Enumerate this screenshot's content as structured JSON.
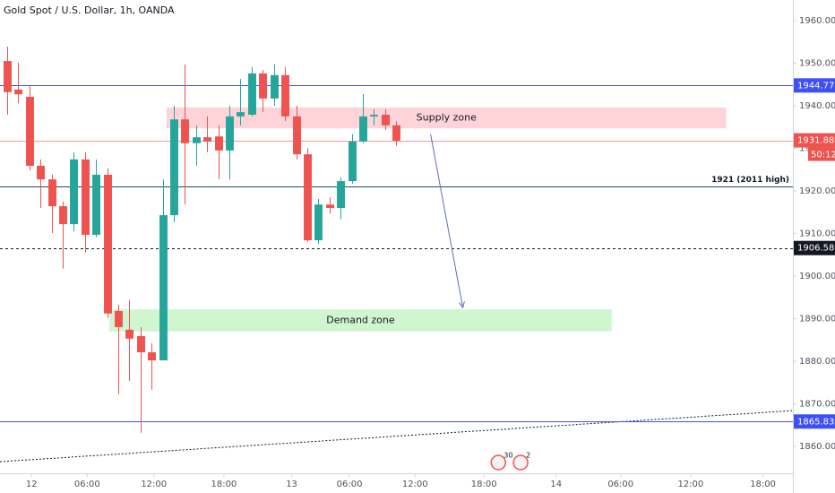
{
  "chart_data": {
    "type": "candlestick",
    "title": "Gold Spot / U.S. Dollar, 1h, OANDA",
    "x": [
      0,
      1,
      2,
      3,
      4,
      5,
      6,
      7,
      8,
      9,
      10,
      11,
      12,
      13,
      14,
      15,
      16,
      17,
      18,
      19,
      20,
      21,
      22,
      23,
      24,
      25,
      26,
      27,
      28,
      29,
      30,
      31,
      32,
      33,
      34,
      35
    ],
    "open": [
      1950.5,
      1943.8,
      1942.1,
      1925.9,
      1922.7,
      1916.4,
      1912.2,
      1927.4,
      1909.7,
      1923.8,
      1891.8,
      1887.4,
      1885.9,
      1882.1,
      1880.2,
      1914.3,
      1936.8,
      1931.2,
      1932.6,
      1932.8,
      1929.5,
      1937.5,
      1937.9,
      1947.6,
      1941.7,
      1947.2,
      1937.5,
      1928.6,
      1908.4,
      1916.8,
      1916.0,
      1922.3,
      1931.6,
      1937.5,
      1937.9,
      1935.4
    ],
    "high": [
      1953.9,
      1950.1,
      1944.8,
      1927.4,
      1923.8,
      1917.5,
      1929.1,
      1929.1,
      1927.4,
      1925.3,
      1893.3,
      1894.3,
      1888.0,
      1884.2,
      1922.7,
      1940.0,
      1949.7,
      1935.4,
      1937.5,
      1935.4,
      1940.0,
      1946.3,
      1949.1,
      1948.4,
      1949.7,
      1949.1,
      1940.0,
      1930.1,
      1918.1,
      1918.5,
      1923.2,
      1933.3,
      1942.7,
      1939.2,
      1939.2,
      1936.4
    ],
    "low": [
      1937.9,
      1940.6,
      1924.8,
      1916.0,
      1910.1,
      1901.7,
      1910.5,
      1905.5,
      1909.1,
      1890.1,
      1872.2,
      1875.4,
      1863.2,
      1873.3,
      1880.2,
      1912.6,
      1916.8,
      1925.9,
      1929.1,
      1922.7,
      1922.7,
      1935.4,
      1937.5,
      1938.5,
      1940.0,
      1936.4,
      1927.4,
      1908.0,
      1907.6,
      1914.7,
      1913.3,
      1921.7,
      1931.2,
      1935.4,
      1934.3,
      1930.5
    ],
    "close": [
      1943.2,
      1942.7,
      1925.9,
      1922.7,
      1916.4,
      1912.2,
      1927.4,
      1909.7,
      1923.8,
      1891.2,
      1888.0,
      1885.3,
      1882.1,
      1880.2,
      1914.3,
      1936.8,
      1931.2,
      1932.6,
      1931.6,
      1929.5,
      1937.5,
      1938.5,
      1947.6,
      1941.7,
      1947.2,
      1937.5,
      1928.6,
      1908.4,
      1916.8,
      1916.0,
      1922.3,
      1931.6,
      1937.5,
      1937.9,
      1935.4,
      1931.8
    ],
    "up_color": "#26a69a",
    "down_color": "#ef5350",
    "xlim": [
      -0.645,
      70.7
    ],
    "xticks": [
      {
        "value": 2.2,
        "label": "12"
      },
      {
        "value": 7.2,
        "label": "06:00"
      },
      {
        "value": 13.2,
        "label": "12:00"
      },
      {
        "value": 19.5,
        "label": "18:00"
      },
      {
        "value": 25.6,
        "label": "13"
      },
      {
        "value": 30.8,
        "label": "06:00"
      },
      {
        "value": 36.7,
        "label": "12:00"
      },
      {
        "value": 42.9,
        "label": "18:00"
      },
      {
        "value": 49.4,
        "label": "14"
      },
      {
        "value": 55.2,
        "label": "06:00"
      },
      {
        "value": 61.5,
        "label": "12:00"
      },
      {
        "value": 68.0,
        "label": "18:00"
      }
    ],
    "ylim": [
      1853.68,
      1964.84
    ],
    "yticks": [
      {
        "value": 1860,
        "label": "1860.000"
      },
      {
        "value": 1870,
        "label": "1870.000"
      },
      {
        "value": 1880,
        "label": "1880.000"
      },
      {
        "value": 1890,
        "label": "1890.000"
      },
      {
        "value": 1900,
        "label": "1900.000"
      },
      {
        "value": 1910,
        "label": "1910.000"
      },
      {
        "value": 1920,
        "label": "1920.000"
      },
      {
        "value": 1930,
        "label": "1930.000"
      },
      {
        "value": 1940,
        "label": "1940.000"
      },
      {
        "value": 1950,
        "label": "1950.000"
      },
      {
        "value": 1960,
        "label": "1960.000"
      }
    ],
    "levels": [
      {
        "value": 1944.774,
        "color": "#3f4ff5",
        "style": "solid",
        "tag": true
      },
      {
        "value": 1931.883,
        "color": "#ef5350",
        "style": "solid",
        "tag": true
      },
      {
        "value": 1921,
        "color": "#1b4f5a",
        "style": "solid",
        "tag": false,
        "label": "1921 (2011 high)"
      },
      {
        "value": 1906.585,
        "color": "#131722",
        "style": "dashed",
        "tag": true
      },
      {
        "value": 1865.836,
        "color": "#3f4ff5",
        "style": "solid",
        "tag": true
      }
    ],
    "zones": [
      {
        "label": "Supply zone",
        "x": [
          14.35,
          64.7
        ],
        "y": [
          1934.7,
          1939.6
        ],
        "color": "#ffcdd2"
      },
      {
        "label": "Demand zone",
        "x": [
          9.2,
          54.4
        ],
        "y": [
          1887.0,
          1892.2
        ],
        "color": "#c8f5c8"
      }
    ],
    "arrow": {
      "x": [
        38.1,
        41.0
      ],
      "y": [
        1933.3,
        1892.6
      ],
      "color": "#5c6bc0"
    },
    "trendline": {
      "x": [
        -0.645,
        70.7
      ],
      "y": [
        1856.4,
        1868.4
      ],
      "color": "#131722"
    },
    "countdown": "50:12",
    "events": [
      {
        "x": 44.2,
        "label": "30"
      },
      {
        "x": 46.2,
        "label": "2"
      }
    ]
  }
}
